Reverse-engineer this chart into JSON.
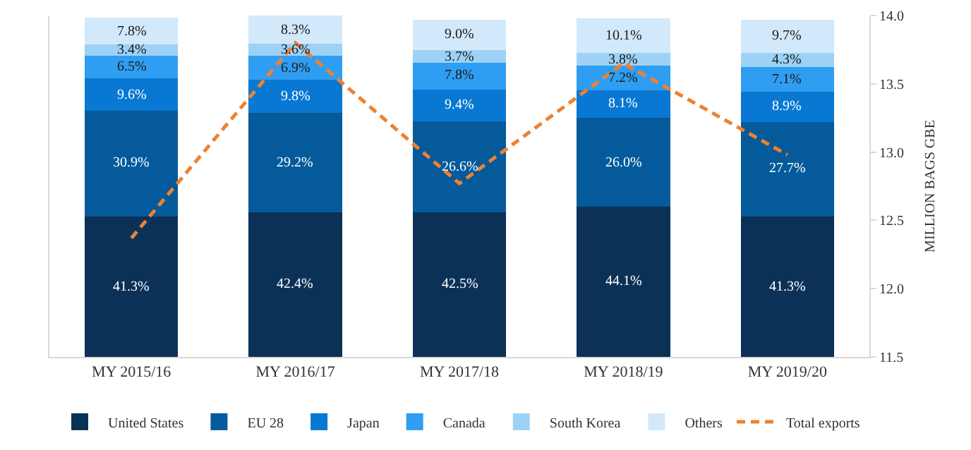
{
  "chart_data": {
    "type": "bar",
    "stacked": true,
    "categories": [
      "MY 2015/16",
      "MY 2016/17",
      "MY 2017/18",
      "MY 2018/19",
      "MY 2019/20"
    ],
    "series": [
      {
        "name": "United States",
        "color": "#0b3157",
        "values": [
          41.3,
          42.4,
          42.5,
          44.1,
          41.3
        ],
        "value_labels": [
          "41.3%",
          "42.4%",
          "42.5%",
          "44.1%",
          "41.3%"
        ]
      },
      {
        "name": "EU 28",
        "color": "#045a9a",
        "values": [
          30.9,
          29.2,
          26.6,
          26.0,
          27.7
        ],
        "value_labels": [
          "30.9%",
          "29.2%",
          "26.6%",
          "26.0%",
          "27.7%"
        ]
      },
      {
        "name": "Japan",
        "color": "#0878d2",
        "values": [
          9.6,
          9.8,
          9.4,
          8.1,
          8.9
        ],
        "value_labels": [
          "9.6%",
          "9.8%",
          "9.4%",
          "8.1%",
          "8.9%"
        ]
      },
      {
        "name": "Canada",
        "color": "#2f9ef2",
        "values": [
          6.5,
          6.9,
          7.8,
          7.2,
          7.1
        ],
        "value_labels": [
          "6.5%",
          "6.9%",
          "7.8%",
          "7.2%",
          "7.1%"
        ]
      },
      {
        "name": "South Korea",
        "color": "#9dd2f6",
        "values": [
          3.4,
          3.6,
          3.7,
          3.8,
          4.3
        ],
        "value_labels": [
          "3.4%",
          "3.6%",
          "3.7%",
          "3.8%",
          "4.3%"
        ]
      },
      {
        "name": "Others",
        "color": "#d2e9fb",
        "values": [
          7.8,
          8.3,
          9.0,
          10.1,
          9.7
        ],
        "value_labels": [
          "7.8%",
          "8.3%",
          "9.0%",
          "10.1%",
          "9.7%"
        ]
      },
      {
        "name": "Total exports",
        "type": "line",
        "axis": "y2",
        "color": "#ee8131",
        "line_style": "dashed",
        "marker": "none",
        "values": [
          12.37,
          13.8,
          12.77,
          13.65,
          12.98
        ]
      }
    ],
    "ylim": [
      0,
      100.2
    ],
    "y2label": "MILLION BAGS GBE",
    "y2lim": [
      11.5,
      14.0
    ],
    "y2ticks": [
      {
        "value": 11.5,
        "label": "11.5"
      },
      {
        "value": 12,
        "label": "12.0"
      },
      {
        "value": 12.5,
        "label": "12.5"
      },
      {
        "value": 13,
        "label": "13.0"
      },
      {
        "value": 13.5,
        "label": "13.5"
      },
      {
        "value": 14,
        "label": "14.0"
      }
    ],
    "legend": "bottom"
  }
}
